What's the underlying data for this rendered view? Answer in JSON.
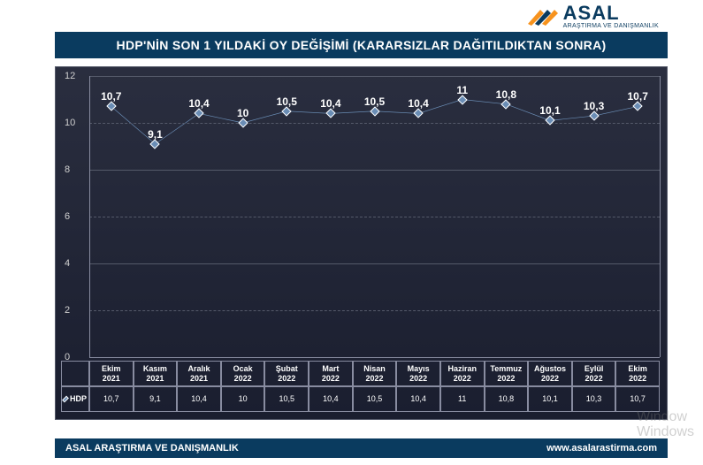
{
  "logo": {
    "main": "ASAL",
    "sub": "ARAŞTIRMA VE DANIŞMANLIK",
    "bar_colors": [
      "#f7931e",
      "#0a3b5f",
      "#f7931e"
    ]
  },
  "title": "HDP'NİN SON 1 YILDAKİ OY DEĞİŞİMİ  (KARARSIZLAR DAĞITILDIKTAN SONRA)",
  "chart": {
    "type": "line",
    "background_gradient": [
      "#2a2e3f",
      "#1a1e2f"
    ],
    "grid_color": "#555a6a",
    "axis_color": "#888ca0",
    "text_color": "#ffffff",
    "ylim": [
      0,
      12
    ],
    "ytick_step": 2,
    "yticks": [
      0,
      2,
      4,
      6,
      8,
      10,
      12
    ],
    "categories": [
      {
        "line1": "Ekim",
        "line2": "2021"
      },
      {
        "line1": "Kasım",
        "line2": "2021"
      },
      {
        "line1": "Aralık",
        "line2": "2021"
      },
      {
        "line1": "Ocak",
        "line2": "2022"
      },
      {
        "line1": "Şubat",
        "line2": "2022"
      },
      {
        "line1": "Mart",
        "line2": "2022"
      },
      {
        "line1": "Nisan",
        "line2": "2022"
      },
      {
        "line1": "Mayıs",
        "line2": "2022"
      },
      {
        "line1": "Haziran",
        "line2": "2022"
      },
      {
        "line1": "Temmuz",
        "line2": "2022"
      },
      {
        "line1": "Ağustos",
        "line2": "2022"
      },
      {
        "line1": "Eylül",
        "line2": "2022"
      },
      {
        "line1": "Ekim",
        "line2": "2022"
      }
    ],
    "series": {
      "name": "HDP",
      "color": "#6a8db5",
      "marker_color": "#6a8db5",
      "marker_border": "#ffffff",
      "line_width": 2,
      "values": [
        10.7,
        9.1,
        10.4,
        10,
        10.5,
        10.4,
        10.5,
        10.4,
        11,
        10.8,
        10.1,
        10.3,
        10.7
      ],
      "value_labels": [
        "10,7",
        "9,1",
        "10,4",
        "10",
        "10,5",
        "10,4",
        "10,5",
        "10,4",
        "11",
        "10,8",
        "10,1",
        "10,3",
        "10,7"
      ]
    },
    "label_fontsize": 12,
    "axis_fontsize": 11,
    "table_fontsize": 9
  },
  "footer": {
    "left": "ASAL ARAŞTIRMA VE DANIŞMANLIK",
    "right": "www.asalarastirma.com",
    "background": "#0a3b5f"
  },
  "watermark": {
    "line1": "Window",
    "line2": "Windows"
  }
}
